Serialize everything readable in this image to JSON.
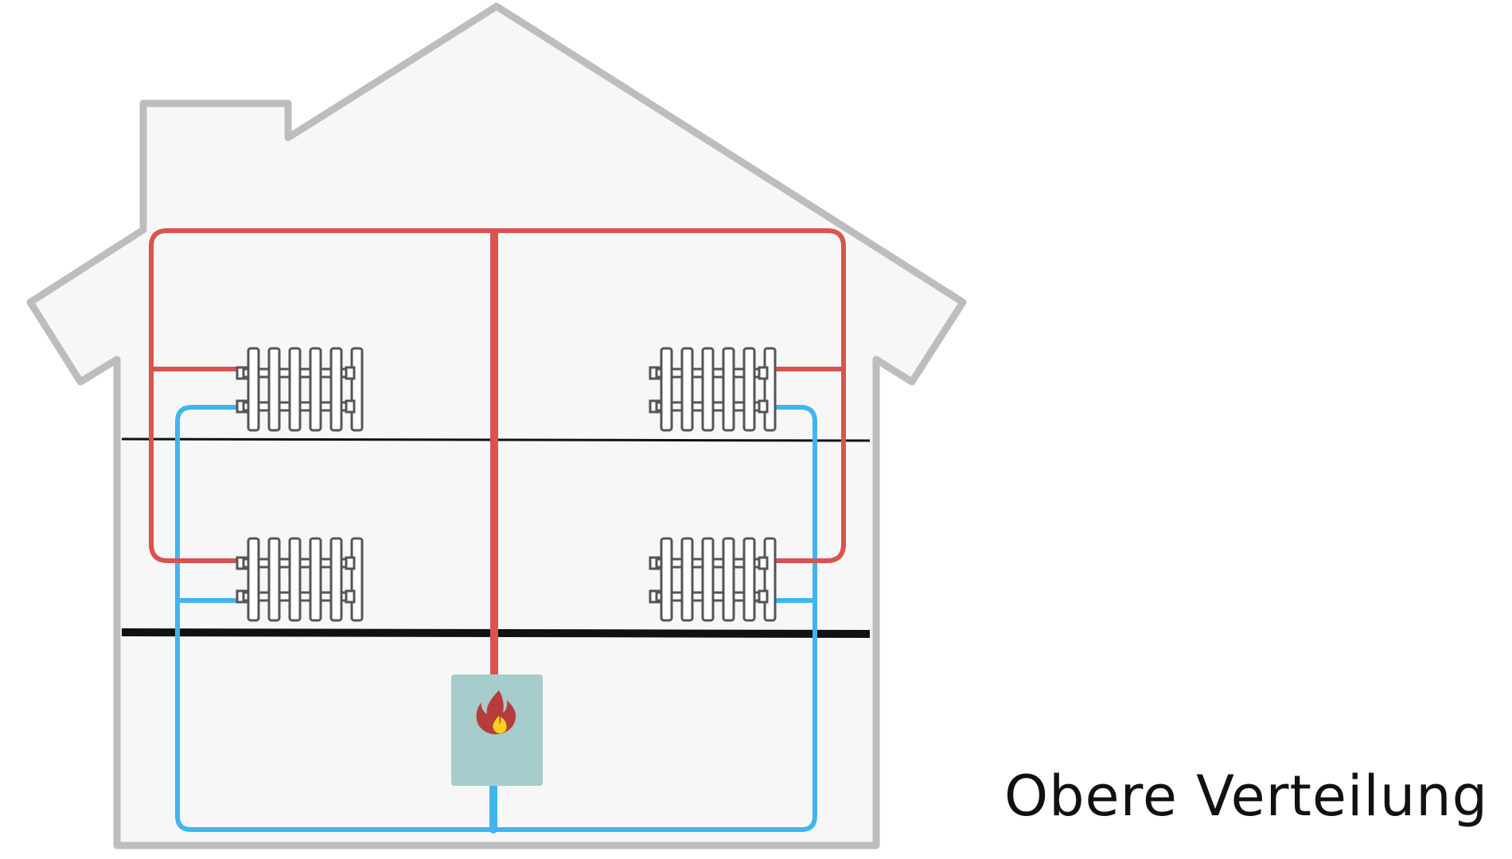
{
  "caption": "Obere Verteilung",
  "colors": {
    "background": "#ffffff",
    "house_fill": "#f7f7f7",
    "house_outline": "#bdbdbd",
    "supply_pipe": "#d9534f",
    "return_pipe": "#3fb5ef",
    "floor_line": "#111111",
    "radiator_outline": "#555555",
    "radiator_fill": "#ffffff",
    "boiler_fill": "#a6cccc",
    "flame_outer": "#b93c3c",
    "flame_inner": "#f7d11e"
  },
  "icons": [
    "radiator-icon",
    "flame-icon"
  ]
}
